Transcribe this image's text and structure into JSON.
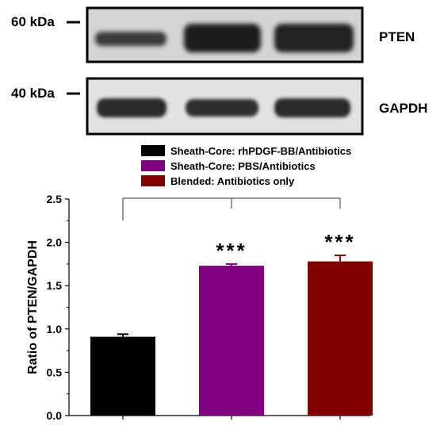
{
  "blots": [
    {
      "marker": "60 kDa",
      "protein": "PTEN"
    },
    {
      "marker": "40 kDa",
      "protein": "GAPDH"
    }
  ],
  "chart_data": {
    "type": "bar",
    "categories": [
      "Sheath-Core: rhPDGF-BB/Antibiotics",
      "Sheath-Core: PBS/Antibiotics",
      "Blended: Antibiotics only"
    ],
    "values": [
      0.91,
      1.73,
      1.78
    ],
    "errors": [
      0.03,
      0.02,
      0.07
    ],
    "colors": [
      "#000000",
      "#800080",
      "#800000"
    ],
    "legend": [
      "Sheath-Core: rhPDGF-BB/Antibiotics",
      "Sheath-Core: PBS/Antibiotics",
      "Blended: Antibiotics only"
    ],
    "legend_position": "top-center",
    "significance": [
      "",
      "***",
      "***"
    ],
    "ylabel": "Ratio of PTEN/GAPDH",
    "xlabel": "",
    "ylim": [
      0.0,
      2.5
    ],
    "yticks": [
      "0.0",
      "0.5",
      "1.0",
      "1.5",
      "2.0",
      "2.5"
    ],
    "grid": false
  }
}
